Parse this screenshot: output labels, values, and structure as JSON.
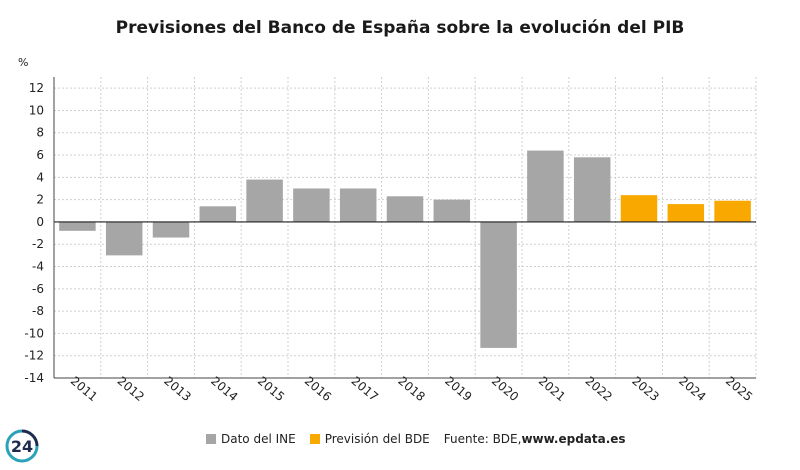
{
  "chart_data": {
    "type": "bar",
    "title": "Previsiones del Banco de España sobre la evolución del PIB",
    "ylabel": "%",
    "ylim": [
      -14,
      13
    ],
    "yticks": [
      12,
      10,
      8,
      6,
      4,
      2,
      0,
      -2,
      -4,
      -6,
      -8,
      -10,
      -12,
      -14
    ],
    "grid": true,
    "categories": [
      "2011",
      "2012",
      "2013",
      "2014",
      "2015",
      "2016",
      "2017",
      "2018",
      "2019",
      "2020",
      "2021",
      "2022",
      "2023",
      "2024",
      "2025"
    ],
    "values": [
      -0.8,
      -3.0,
      -1.4,
      1.4,
      3.8,
      3.0,
      3.0,
      2.3,
      2.0,
      -11.3,
      6.4,
      5.8,
      2.4,
      1.6,
      1.9
    ],
    "series_of_point": [
      "ine",
      "ine",
      "ine",
      "ine",
      "ine",
      "ine",
      "ine",
      "ine",
      "ine",
      "ine",
      "ine",
      "ine",
      "bde",
      "bde",
      "bde"
    ],
    "series": [
      {
        "key": "ine",
        "name": "Dato del INE",
        "color": "#a6a6a6"
      },
      {
        "key": "bde",
        "name": "Previsión del BDE",
        "color": "#f9a800"
      }
    ],
    "legend_position": "bottom"
  },
  "source": {
    "prefix": "Fuente: BDE, ",
    "site": "www.epdata.es"
  },
  "logo_text": "24"
}
